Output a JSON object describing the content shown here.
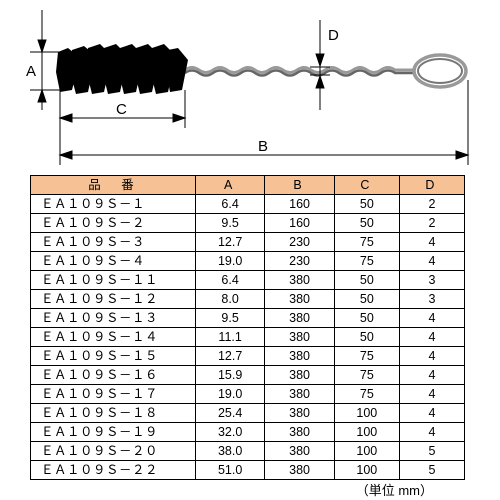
{
  "diagram": {
    "label_A": "A",
    "label_B": "B",
    "label_C": "C",
    "label_D": "D",
    "brush_color": "#000000",
    "wire_stroke": "#888888",
    "dim_stroke": "#000000"
  },
  "table": {
    "header_bg": "#f5c195",
    "cell_bg": "#ffffff",
    "border_color": "#000000",
    "columns": [
      "品　番",
      "A",
      "B",
      "C",
      "D"
    ],
    "col_widths": [
      "38%",
      "16%",
      "16%",
      "15%",
      "15%"
    ],
    "rows": [
      [
        "ＥＡ１０９Ｓ－１",
        "6.4",
        "160",
        "50",
        "2"
      ],
      [
        "ＥＡ１０９Ｓ－２",
        "9.5",
        "160",
        "50",
        "2"
      ],
      [
        "ＥＡ１０９Ｓ－３",
        "12.7",
        "230",
        "75",
        "4"
      ],
      [
        "ＥＡ１０９Ｓ－４",
        "19.0",
        "230",
        "75",
        "4"
      ],
      [
        "ＥＡ１０９Ｓ－１１",
        "6.4",
        "380",
        "50",
        "3"
      ],
      [
        "ＥＡ１０９Ｓ－１２",
        "8.0",
        "380",
        "50",
        "3"
      ],
      [
        "ＥＡ１０９Ｓ－１３",
        "9.5",
        "380",
        "50",
        "4"
      ],
      [
        "ＥＡ１０９Ｓ－１４",
        "11.1",
        "380",
        "50",
        "4"
      ],
      [
        "ＥＡ１０９Ｓ－１５",
        "12.7",
        "380",
        "75",
        "4"
      ],
      [
        "ＥＡ１０９Ｓ－１６",
        "15.9",
        "380",
        "75",
        "4"
      ],
      [
        "ＥＡ１０９Ｓ－１７",
        "19.0",
        "380",
        "75",
        "4"
      ],
      [
        "ＥＡ１０９Ｓ－１８",
        "25.4",
        "380",
        "100",
        "4"
      ],
      [
        "ＥＡ１０９Ｓ－１９",
        "32.0",
        "380",
        "100",
        "4"
      ],
      [
        "ＥＡ１０９Ｓ－２０",
        "38.0",
        "380",
        "100",
        "5"
      ],
      [
        "ＥＡ１０９Ｓ－２２",
        "51.0",
        "380",
        "100",
        "5"
      ]
    ],
    "unit_label": "（単位 mm）"
  }
}
